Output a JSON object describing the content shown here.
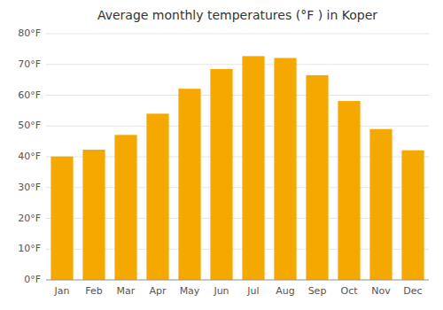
{
  "chart_data": {
    "type": "bar",
    "title": "Average monthly temperatures (°F ) in Koper",
    "categories": [
      "Jan",
      "Feb",
      "Mar",
      "Apr",
      "May",
      "Jun",
      "Jul",
      "Aug",
      "Sep",
      "Oct",
      "Nov",
      "Dec"
    ],
    "values": [
      40.1,
      42.3,
      47.1,
      54.0,
      62.1,
      68.5,
      72.7,
      72.1,
      66.5,
      58.1,
      49.0,
      42.1
    ],
    "color": "#F5A800",
    "ylim": [
      0,
      80
    ],
    "yticks": [
      {
        "value": 0,
        "label": "0°F"
      },
      {
        "value": 10,
        "label": "10°F"
      },
      {
        "value": 20,
        "label": "20°F"
      },
      {
        "value": 30,
        "label": "30°F"
      },
      {
        "value": 40,
        "label": "40°F"
      },
      {
        "value": 50,
        "label": "50°F"
      },
      {
        "value": 60,
        "label": "60°F"
      },
      {
        "value": 70,
        "label": "70°F"
      },
      {
        "value": 80,
        "label": "80°F"
      }
    ],
    "grid": true
  }
}
